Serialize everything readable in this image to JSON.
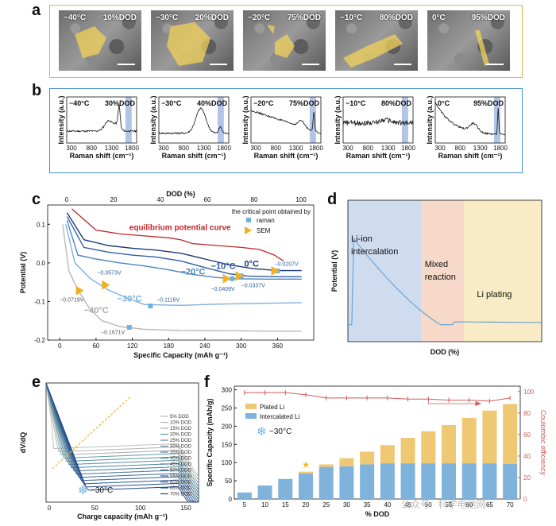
{
  "panel_labels": {
    "a": "a",
    "b": "b",
    "c": "c",
    "d": "d",
    "e": "e",
    "f": "f"
  },
  "panel_a": {
    "images": [
      {
        "temp": "−40°C",
        "dod": "10%DOD"
      },
      {
        "temp": "−30°C",
        "dod": "20%DOD"
      },
      {
        "temp": "−20°C",
        "dod": "75%DOD"
      },
      {
        "temp": "−10°C",
        "dod": "80%DOD"
      },
      {
        "temp": "0°C",
        "dod": "95%DOD"
      }
    ],
    "highlight_color": "#f2d25a"
  },
  "panel_b": {
    "ylabel": "Intensity (a.u.)",
    "xlabel": "Raman shift (cm⁻¹)",
    "ticks": [
      "300",
      "800",
      "1300",
      "1800"
    ],
    "spectra": [
      {
        "temp": "−40°C",
        "dod": "30%DOD"
      },
      {
        "temp": "−30°C",
        "dod": "40%DOD"
      },
      {
        "temp": "−20°C",
        "dod": "75%DOD"
      },
      {
        "temp": "−10°C",
        "dod": "80%DOD"
      },
      {
        "temp": "0°C",
        "dod": "95%DOD"
      }
    ],
    "band_color": "#7f9fd6"
  },
  "chart_data": [
    {
      "type": "line",
      "panel": "c",
      "xlabel": "Specific Capacity (mAh g⁻¹)",
      "ylabel": "Potential (V)",
      "top_axis_label": "DOD (%)",
      "xticks": [
        0,
        60,
        120,
        180,
        240,
        300,
        360
      ],
      "top_ticks": [
        0,
        20,
        40,
        60,
        80,
        100
      ],
      "yticks": [
        0.1,
        0.0,
        -0.1,
        -0.2
      ],
      "xlim": [
        -20,
        420
      ],
      "ylim": [
        -0.2,
        0.15
      ],
      "legend": {
        "title": "the critical point obtained by",
        "entries": [
          "raman",
          "SEM"
        ]
      },
      "annotations": [
        "equilibrium potential curve",
        "0°C",
        "−10°C",
        "−20°C",
        "−30°C",
        "−40°C",
        "−0.0207V",
        "−0.0337V",
        "−0.0409V",
        "−0.0573V",
        "−0.0719V",
        "−0.1116V",
        "−0.1671V"
      ],
      "series": [
        {
          "name": "equilibrium potential curve",
          "color": "#c0262c",
          "x": [
            20,
            60,
            100,
            140,
            180,
            200,
            220,
            260,
            300,
            330,
            355,
            370
          ],
          "y": [
            0.14,
            0.085,
            0.075,
            0.07,
            0.065,
            0.06,
            0.05,
            0.045,
            0.04,
            0.035,
            0.02,
            0.005
          ]
        },
        {
          "name": "0°C",
          "color": "#1a3a78",
          "x": [
            12,
            40,
            80,
            120,
            160,
            200,
            240,
            280,
            320,
            360,
            400
          ],
          "y": [
            0.13,
            0.06,
            0.045,
            0.038,
            0.033,
            0.025,
            0.01,
            -0.005,
            -0.015,
            -0.02,
            -0.02
          ]
        },
        {
          "name": "−10°C",
          "color": "#2f5fa0",
          "x": [
            12,
            40,
            80,
            120,
            160,
            200,
            240,
            280,
            310,
            360,
            400
          ],
          "y": [
            0.12,
            0.04,
            0.028,
            0.02,
            0.015,
            0.005,
            -0.012,
            -0.028,
            -0.034,
            -0.036,
            -0.036
          ]
        },
        {
          "name": "−20°C",
          "color": "#4a86c0",
          "x": [
            12,
            30,
            60,
            100,
            140,
            180,
            220,
            260,
            290,
            340,
            400
          ],
          "y": [
            0.11,
            0.02,
            0.01,
            0.0,
            -0.008,
            -0.018,
            -0.03,
            -0.038,
            -0.041,
            -0.042,
            -0.042
          ]
        },
        {
          "name": "−30°C",
          "color": "#7fb0dc",
          "x": [
            10,
            25,
            50,
            80,
            110,
            140,
            200,
            260,
            320,
            400
          ],
          "y": [
            0.1,
            0.0,
            -0.04,
            -0.07,
            -0.09,
            -0.108,
            -0.11,
            -0.107,
            -0.105,
            -0.103
          ]
        },
        {
          "name": "−40°C",
          "color": "#b8b8b8",
          "x": [
            5,
            15,
            30,
            50,
            70,
            100,
            140,
            200,
            280,
            360,
            400
          ],
          "y": [
            0.1,
            -0.02,
            -0.07,
            -0.12,
            -0.15,
            -0.165,
            -0.172,
            -0.175,
            -0.176,
            -0.177,
            -0.177
          ]
        }
      ],
      "markers": [
        {
          "kind": "raman",
          "x": 360,
          "y": -0.0207
        },
        {
          "kind": "raman",
          "x": 300,
          "y": -0.0337
        },
        {
          "kind": "raman",
          "x": 285,
          "y": -0.0409
        },
        {
          "kind": "raman",
          "x": 150,
          "y": -0.1116
        },
        {
          "kind": "raman",
          "x": 115,
          "y": -0.1671
        },
        {
          "kind": "SEM",
          "x": 355,
          "y": -0.0207
        },
        {
          "kind": "SEM",
          "x": 296,
          "y": -0.0337
        },
        {
          "kind": "SEM",
          "x": 275,
          "y": -0.0409
        },
        {
          "kind": "SEM",
          "x": 75,
          "y": -0.0573
        },
        {
          "kind": "SEM",
          "x": 32,
          "y": -0.0719
        }
      ]
    },
    {
      "type": "line",
      "panel": "d",
      "xlabel": "DOD (%)",
      "ylabel": "Potential (V)",
      "regions": [
        "Li-ion intercalation",
        "Mixed reaction",
        "Li plating"
      ],
      "region_colors": [
        "#cfdcf0",
        "#f6d9c8",
        "#f8ebc5"
      ]
    },
    {
      "type": "line",
      "panel": "e",
      "xlabel": "Charge capacity (mAh g⁻¹)",
      "ylabel": "dV/dQ",
      "xticks": [
        0,
        50,
        100,
        150
      ],
      "annotation": "−30°C",
      "legend": [
        "5% DOD",
        "10% DOD",
        "15% DOD",
        "20% DOD",
        "25% DOD",
        "30% DOD",
        "35% DOD",
        "40% DOD",
        "45% DOD",
        "50% DOD",
        "55% DOD",
        "60% DOD",
        "65% DOD",
        "70% DOD"
      ]
    },
    {
      "type": "bar",
      "panel": "f",
      "xlabel": "% DOD",
      "ylabel": "Specific Capacity (mAh/g)",
      "y2label": "Coulombic efficiency",
      "annotation": "−30°C",
      "categories": [
        "5",
        "10",
        "15",
        "20",
        "25",
        "30",
        "35",
        "40",
        "45",
        "50",
        "55",
        "60",
        "65",
        "70"
      ],
      "yticks": [
        0,
        50,
        100,
        150,
        200,
        250,
        300
      ],
      "y2ticks": [
        0,
        20,
        40,
        60,
        80,
        100
      ],
      "ylim": [
        0,
        310
      ],
      "series": [
        {
          "name": "Intercalated Li",
          "color": "#7fb3dc",
          "values": [
            18,
            37,
            55,
            70,
            88,
            90,
            95,
            98,
            98,
            98,
            98,
            98,
            98,
            96
          ]
        },
        {
          "name": "Plated Li",
          "color": "#efc874",
          "values": [
            0,
            0,
            0,
            5,
            7,
            22,
            35,
            50,
            70,
            88,
            105,
            125,
            145,
            165
          ]
        }
      ],
      "ce": {
        "name": "Coulombic efficiency",
        "color": "#d35a55",
        "values": [
          99,
          99,
          99,
          97,
          94,
          94,
          94,
          94,
          93,
          93,
          92,
          92,
          91,
          94
        ]
      }
    }
  ],
  "watermark": "公众号 · 科学电池网"
}
